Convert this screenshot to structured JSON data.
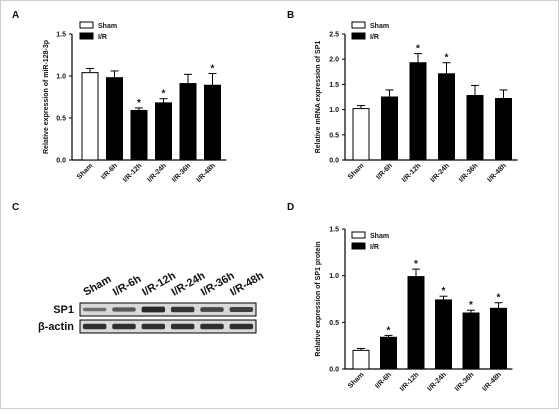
{
  "panels": {
    "a": "A",
    "b": "B",
    "c": "C",
    "d": "D"
  },
  "chart_data": [
    {
      "panel": "A",
      "type": "bar",
      "categories": [
        "Sham",
        "I/R-6h",
        "I/R-12h",
        "I/R-24h",
        "I/R-36h",
        "I/R-48h"
      ],
      "values": [
        1.04,
        0.98,
        0.59,
        0.68,
        0.91,
        0.89
      ],
      "errors": [
        0.05,
        0.08,
        0.03,
        0.05,
        0.11,
        0.14
      ],
      "significance": [
        "",
        "",
        "*",
        "*",
        "",
        "*"
      ],
      "group": [
        "Sham",
        "I/R",
        "I/R",
        "I/R",
        "I/R",
        "I/R"
      ],
      "legend": [
        "Sham",
        "I/R"
      ],
      "xlabel": "",
      "ylabel": "Relative expression of miR-128-3p",
      "ylim": [
        0,
        1.5
      ],
      "yticks": [
        "0.0",
        "0.5",
        "1.0",
        "1.5"
      ],
      "title": ""
    },
    {
      "panel": "B",
      "type": "bar",
      "categories": [
        "Sham",
        "I/R-6h",
        "I/R-12h",
        "I/R-24h",
        "I/R-36h",
        "I/R-48h"
      ],
      "values": [
        1.02,
        1.25,
        1.93,
        1.71,
        1.28,
        1.22
      ],
      "errors": [
        0.06,
        0.14,
        0.18,
        0.22,
        0.2,
        0.17
      ],
      "significance": [
        "",
        "",
        "*",
        "*",
        "",
        ""
      ],
      "group": [
        "Sham",
        "I/R",
        "I/R",
        "I/R",
        "I/R",
        "I/R"
      ],
      "legend": [
        "Sham",
        "I/R"
      ],
      "xlabel": "",
      "ylabel": "Relative mRNA expression of SP1",
      "ylim": [
        0,
        2.5
      ],
      "yticks": [
        "0.0",
        "0.5",
        "1.0",
        "1.5",
        "2.0",
        "2.5"
      ],
      "title": ""
    },
    {
      "panel": "D",
      "type": "bar",
      "categories": [
        "Sham",
        "I/R-6h",
        "I/R-12h",
        "I/R-24h",
        "I/R-36h",
        "I/R-48h"
      ],
      "values": [
        0.2,
        0.34,
        0.99,
        0.74,
        0.6,
        0.65
      ],
      "errors": [
        0.02,
        0.02,
        0.08,
        0.04,
        0.03,
        0.06
      ],
      "significance": [
        "",
        "*",
        "*",
        "*",
        "*",
        "*"
      ],
      "group": [
        "Sham",
        "I/R",
        "I/R",
        "I/R",
        "I/R",
        "I/R"
      ],
      "legend": [
        "Sham",
        "I/R"
      ],
      "xlabel": "",
      "ylabel": "Relative expression of SP1 protein",
      "ylim": [
        0,
        1.5
      ],
      "yticks": [
        "0.0",
        "0.5",
        "1.0",
        "1.5"
      ],
      "title": ""
    }
  ],
  "blot": {
    "lanes": [
      "Sham",
      "I/R-6h",
      "I/R-12h",
      "I/R-24h",
      "I/R-36h",
      "I/R-48h"
    ],
    "rows": [
      {
        "label": "SP1",
        "intensity": [
          0.35,
          0.55,
          0.95,
          0.85,
          0.7,
          0.75
        ]
      },
      {
        "label": "β-actin",
        "intensity": [
          0.9,
          0.9,
          0.9,
          0.9,
          0.9,
          0.9
        ]
      }
    ]
  },
  "colors": {
    "sham_fill": "#ffffff",
    "ir_fill": "#000000",
    "axis": "#000000",
    "blot_bg": "#d9d9d9",
    "band": "#1a1a1a"
  }
}
